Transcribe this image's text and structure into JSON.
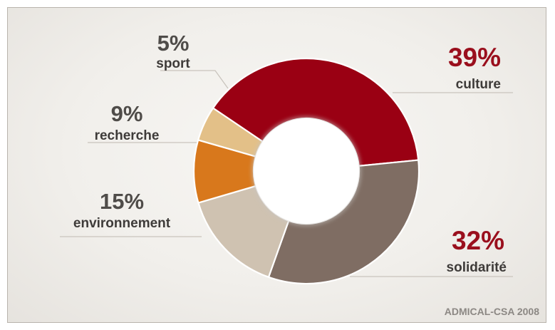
{
  "chart_data": {
    "type": "pie",
    "subtype": "donut",
    "slices": [
      {
        "label": "culture",
        "percent_label": "39%",
        "value": 39,
        "color": "#9a0013"
      },
      {
        "label": "solidarité",
        "percent_label": "32%",
        "value": 32,
        "color": "#7f6d63"
      },
      {
        "label": "environnement",
        "percent_label": "15%",
        "value": 15,
        "color": "#cfc2b1"
      },
      {
        "label": "recherche",
        "percent_label": "9%",
        "value": 9,
        "color": "#d8781c"
      },
      {
        "label": "sport",
        "percent_label": "5%",
        "value": 5,
        "color": "#e3c088"
      }
    ]
  },
  "source": "ADMICAL-CSA 2008"
}
